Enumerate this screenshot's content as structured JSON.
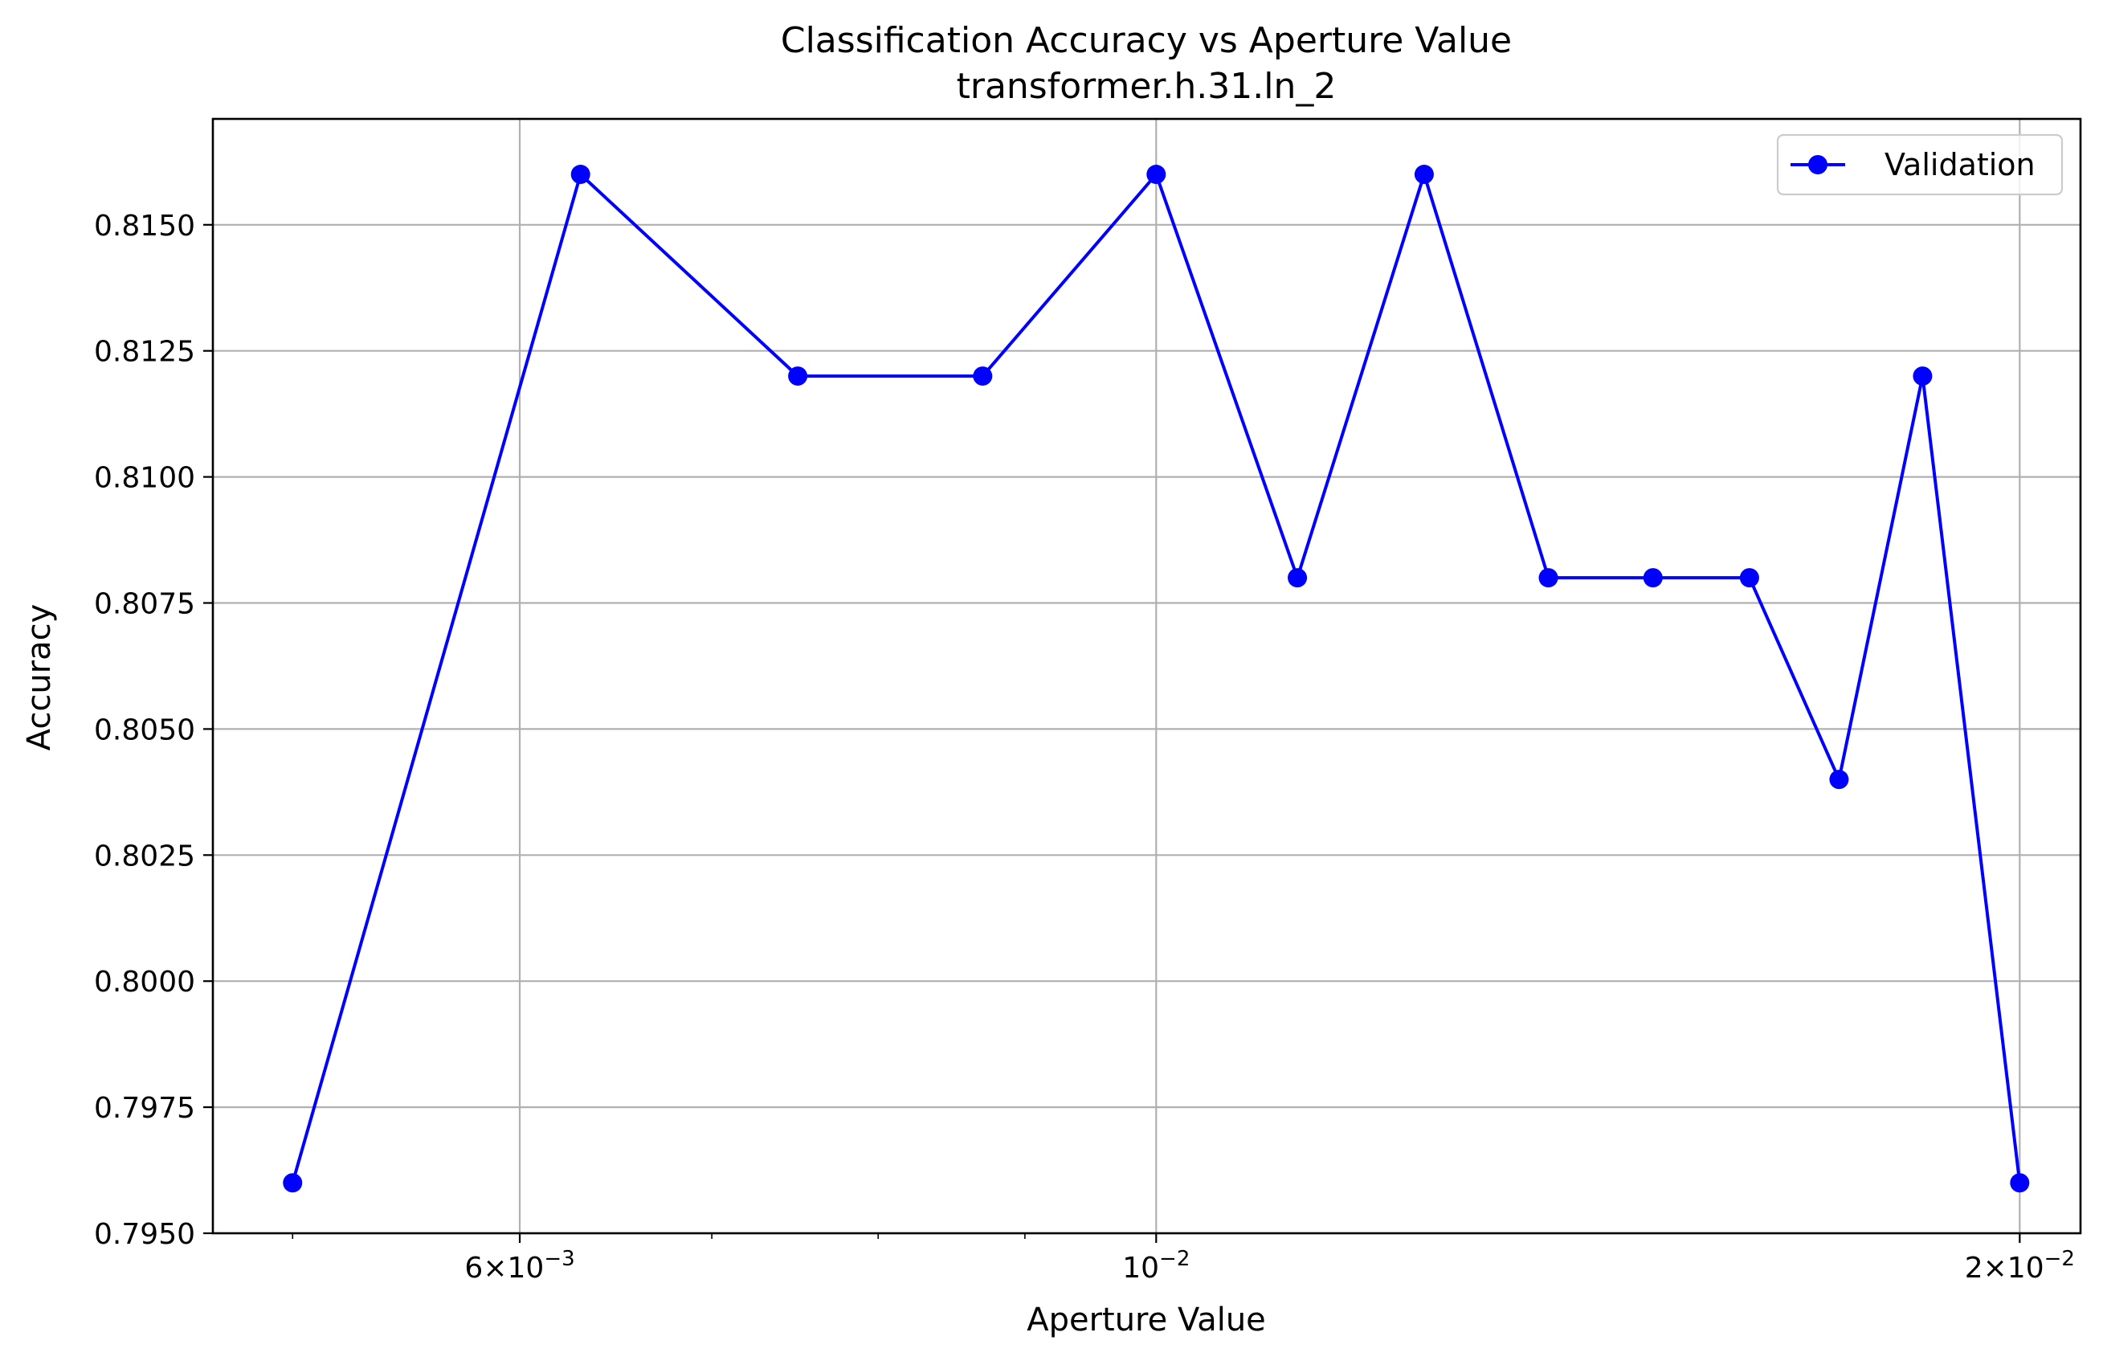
{
  "chart_data": {
    "type": "line",
    "title": "Classification Accuracy vs Aperture Value",
    "subtitle": "transformer.h.31.ln_2",
    "xlabel": "Aperture Value",
    "ylabel": "Accuracy",
    "xscale": "log",
    "xlim": [
      0.00469,
      0.021
    ],
    "ylim": [
      0.795,
      0.8171
    ],
    "grid": true,
    "legend_position": "top-right",
    "x_ticks": [
      {
        "value": 0.006,
        "mantissa": "6",
        "exponent": "−3"
      },
      {
        "value": 0.01,
        "mantissa": "",
        "exponent": "−2"
      },
      {
        "value": 0.02,
        "mantissa": "2",
        "exponent": "−2"
      }
    ],
    "x_minor_ticks": [
      0.005,
      0.007,
      0.008,
      0.009
    ],
    "y_ticks": [
      "0.7950",
      "0.7975",
      "0.8000",
      "0.8025",
      "0.8050",
      "0.8075",
      "0.8100",
      "0.8125",
      "0.8150"
    ],
    "series": [
      {
        "name": "Validation",
        "color": "#0000ff",
        "marker": "circle",
        "x": [
          0.005,
          0.0063,
          0.0075,
          0.0087,
          0.01,
          0.0112,
          0.0124,
          0.0137,
          0.0149,
          0.0161,
          0.0173,
          0.0185,
          0.02
        ],
        "y": [
          0.796,
          0.816,
          0.812,
          0.812,
          0.816,
          0.808,
          0.816,
          0.808,
          0.808,
          0.808,
          0.804,
          0.812,
          0.796
        ]
      }
    ]
  }
}
